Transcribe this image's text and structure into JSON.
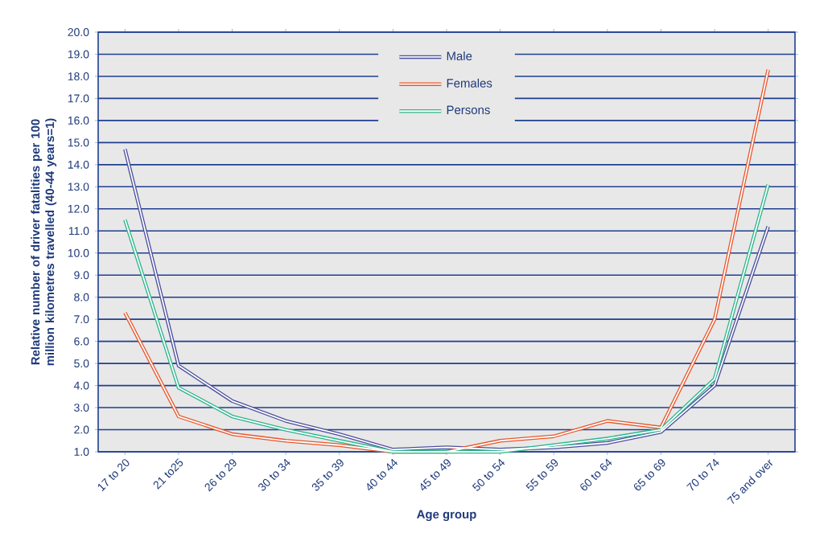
{
  "chart_data": {
    "type": "line",
    "xlabel": "Age group",
    "ylabel": "Relative number of driver fatalities per 100 million kilometres travelled (40-44 years=1)",
    "categories": [
      "17 to 20",
      "21 to25",
      "26 to 29",
      "30 to 34",
      "35 to 39",
      "40 to 44",
      "45 to 49",
      "50 to 54",
      "55 to 59",
      "60 to 64",
      "65 to 69",
      "70 to 74",
      "75 and over"
    ],
    "series": [
      {
        "name": "Male",
        "color": "#4b4f9e",
        "values": [
          14.7,
          4.9,
          3.3,
          2.4,
          1.8,
          1.1,
          1.2,
          1.1,
          1.2,
          1.4,
          1.9,
          4.0,
          11.2
        ]
      },
      {
        "name": "Females",
        "color": "#e8562c",
        "values": [
          7.3,
          2.6,
          1.8,
          1.5,
          1.3,
          1.0,
          1.0,
          1.5,
          1.7,
          2.4,
          2.1,
          7.0,
          18.3
        ]
      },
      {
        "name": "Persons",
        "color": "#2bb58c",
        "values": [
          11.5,
          3.9,
          2.6,
          2.0,
          1.5,
          1.0,
          1.0,
          1.0,
          1.3,
          1.6,
          2.0,
          4.3,
          13.1
        ]
      }
    ],
    "ylim": [
      1,
      20
    ],
    "yticks": [
      {
        "value": 1,
        "label": "1.0"
      },
      {
        "value": 2,
        "label": "2.0"
      },
      {
        "value": 3,
        "label": "3.0"
      },
      {
        "value": 4,
        "label": "4.0"
      },
      {
        "value": 5,
        "label": "5.0"
      },
      {
        "value": 6,
        "label": "6.0"
      },
      {
        "value": 7,
        "label": "7.0"
      },
      {
        "value": 8,
        "label": "8.0"
      },
      {
        "value": 9,
        "label": "9.0"
      },
      {
        "value": 10,
        "label": "10.0"
      },
      {
        "value": 11,
        "label": "11.0"
      },
      {
        "value": 12,
        "label": "12.0"
      },
      {
        "value": 13,
        "label": "13.0"
      },
      {
        "value": 14,
        "label": "14.0"
      },
      {
        "value": 15,
        "label": "15.0"
      },
      {
        "value": 16,
        "label": "16.0"
      },
      {
        "value": 17,
        "label": "17.0"
      },
      {
        "value": 18,
        "label": "18.0"
      },
      {
        "value": 19,
        "label": "19.0"
      },
      {
        "value": 20,
        "label": "20.0"
      }
    ],
    "grid": "y",
    "legend": "top",
    "marker": "none",
    "line_style": "solid"
  }
}
